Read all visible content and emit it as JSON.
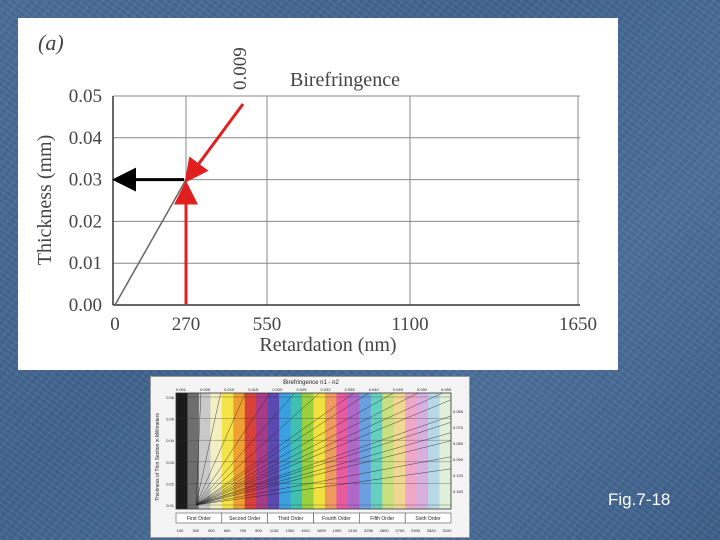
{
  "slide": {
    "fig_label": "Fig.7-18"
  },
  "chart_data": [
    {
      "type": "line",
      "panel_label": "(a)",
      "title": "Birefringence",
      "xlabel": "Retardation (nm)",
      "ylabel": "Thickness (mm)",
      "xlim": [
        0,
        1650
      ],
      "ylim": [
        0,
        0.05
      ],
      "x_ticks": [
        "0",
        "270",
        "550",
        "1100",
        "1650"
      ],
      "x_tick_values": [
        0,
        270,
        550,
        1100,
        1650
      ],
      "y_ticks": [
        "0.00",
        "0.01",
        "0.02",
        "0.03",
        "0.04",
        "0.05"
      ],
      "y_tick_values": [
        0,
        0.01,
        0.02,
        0.03,
        0.04,
        0.05
      ],
      "grid": true,
      "series": [
        {
          "birefringence": 0.009,
          "label": "0.009",
          "points": [
            [
              0,
              0
            ],
            [
              270,
              0.03
            ]
          ]
        }
      ],
      "annotations": {
        "arrow_color": "#e02020",
        "result_arrow_color": "#000000",
        "retardation": 270,
        "thickness": 0.03
      }
    },
    {
      "type": "line",
      "title": "Birefringence n1 - n2",
      "ylabel": "Thickness of Thin Section in Millimeters",
      "top_ticks": [
        "0.001",
        "0.005",
        "0.010",
        "0.015",
        "0.020",
        "0.025",
        "0.032",
        "0.035",
        "0.040",
        "0.045",
        "0.050",
        "0.055"
      ],
      "right_ticks": [
        "0.065",
        "0.070",
        "0.080",
        "0.090",
        "0.120",
        "0.160"
      ],
      "left_ticks": [
        "0.06",
        "0.05",
        "0.04",
        "0.03",
        "0.02",
        "0.01"
      ],
      "orders": [
        "First Order",
        "Second Order",
        "Third Order",
        "Fourth Order",
        "Fifth Order",
        "Sixth Order"
      ],
      "bottom_ticks": [
        "100",
        "300",
        "500",
        "600",
        "700",
        "900",
        "1130",
        "1300",
        "1501",
        "1690",
        "1900",
        "2100",
        "2256",
        "2600",
        "2700",
        "2900",
        "2820",
        "3100"
      ],
      "retardation_max": 3100,
      "thickness_max": 0.06,
      "birefringences": [
        0.001,
        0.005,
        0.01,
        0.015,
        0.02,
        0.025,
        0.032,
        0.035,
        0.04,
        0.045,
        0.05,
        0.055,
        0.065,
        0.07,
        0.08,
        0.09,
        0.12,
        0.16
      ],
      "colors": [
        "#1a1a1a",
        "#6e6e6e",
        "#c9c9c9",
        "#f2efc4",
        "#f5e34a",
        "#f0a030",
        "#d8403a",
        "#a83a8a",
        "#5a4ab0",
        "#3aa0e0",
        "#40c0b0",
        "#9ad040",
        "#f0e040",
        "#f09a60",
        "#e85aa0",
        "#b068c8",
        "#6aa0e0",
        "#66d0c0",
        "#c8e080",
        "#f0d890",
        "#f0a8c8",
        "#d8b0e0",
        "#b8d8e8",
        "#e0f0d8"
      ]
    }
  ]
}
